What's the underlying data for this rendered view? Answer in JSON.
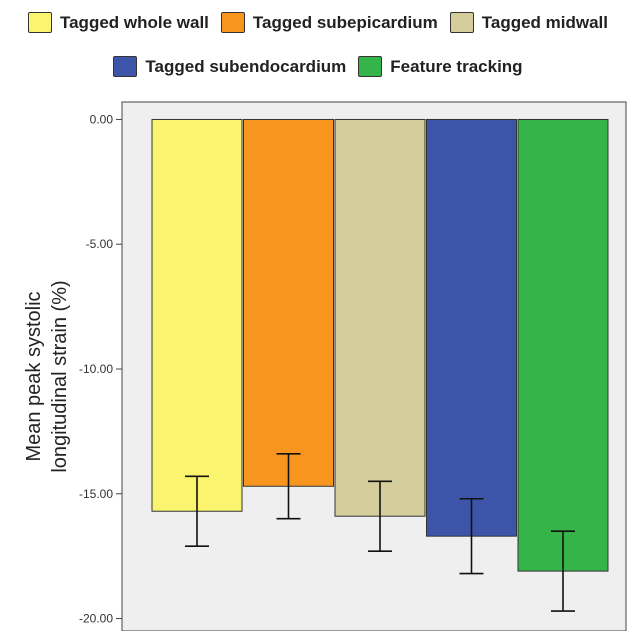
{
  "chart_data": {
    "type": "bar",
    "title": "",
    "xlabel": "",
    "ylabel": [
      "Mean peak systolic",
      "longitudinal strain (%)"
    ],
    "ylim": [
      -20.5,
      0.7
    ],
    "yticks": [
      0,
      -5,
      -10,
      -15,
      -20
    ],
    "ytick_labels": [
      "0.00",
      "-5.00",
      "-10.00",
      "-15.00",
      "-20.00"
    ],
    "grid": false,
    "legend_position": "top",
    "categories": [
      "Tagged whole wall",
      "Tagged subepicardium",
      "Tagged midwall",
      "Tagged subendocardium",
      "Feature tracking"
    ],
    "values": [
      -15.7,
      -14.7,
      -15.9,
      -16.7,
      -18.1
    ],
    "error_low": [
      -17.1,
      -16.0,
      -17.3,
      -18.2,
      -19.7
    ],
    "error_high": [
      -14.3,
      -13.4,
      -14.5,
      -15.2,
      -16.5
    ],
    "colors": [
      "#FAF46E",
      "#F7951E",
      "#D6CD9D",
      "#3C55A8",
      "#35B44A"
    ],
    "plot_background": "#EFEFEF"
  },
  "legend": {
    "row1": [
      {
        "label": "Tagged whole wall",
        "color": "#FAF46E"
      },
      {
        "label": "Tagged subepicardium",
        "color": "#F7951E"
      },
      {
        "label": "Tagged midwall",
        "color": "#D6CD9D"
      }
    ],
    "row2": [
      {
        "label": "Tagged subendocardium",
        "color": "#3C55A8"
      },
      {
        "label": "Feature tracking",
        "color": "#35B44A"
      }
    ]
  }
}
